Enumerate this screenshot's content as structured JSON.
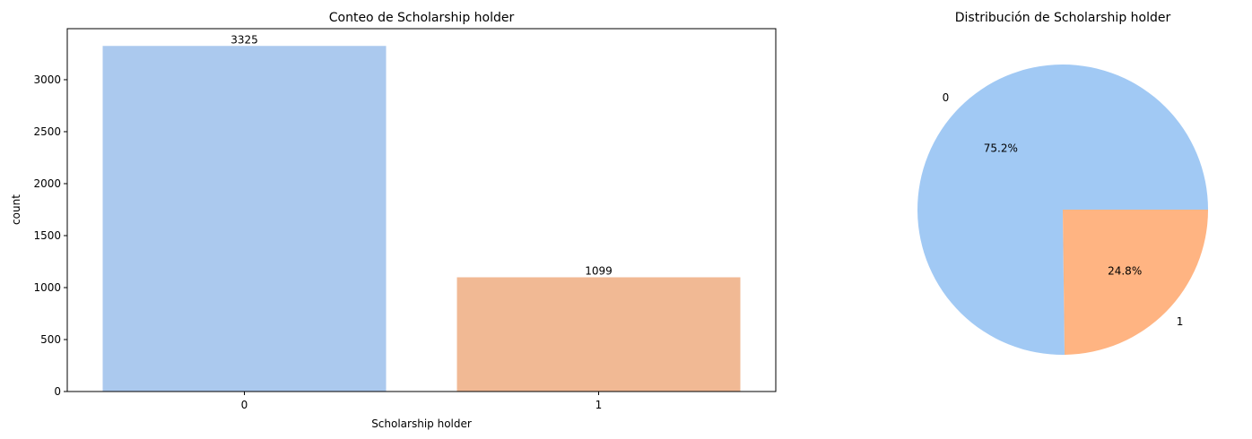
{
  "chart_data": [
    {
      "type": "bar",
      "title": "Conteo de Scholarship holder",
      "xlabel": "Scholarship holder",
      "ylabel": "count",
      "categories": [
        "0",
        "1"
      ],
      "values": [
        3325,
        1099
      ],
      "data_labels": [
        "3325",
        "1099"
      ],
      "colors": [
        "#abc9ee",
        "#f1b994"
      ],
      "ylim": [
        0,
        3491
      ],
      "yticks": [
        0,
        500,
        1000,
        1500,
        2000,
        2500,
        3000
      ],
      "ytick_labels": [
        "0",
        "500",
        "1000",
        "1500",
        "2000",
        "2500",
        "3000"
      ],
      "grid": false,
      "legend": "none"
    },
    {
      "type": "pie",
      "title": "Distribución de Scholarship holder",
      "labels": [
        "0",
        "1"
      ],
      "values": [
        75.2,
        24.8
      ],
      "pct_labels": [
        "75.2%",
        "24.8%"
      ],
      "colors": [
        "#a1c9f4",
        "#ffb482"
      ],
      "start_angle_deg": 0,
      "legend": "none"
    }
  ]
}
